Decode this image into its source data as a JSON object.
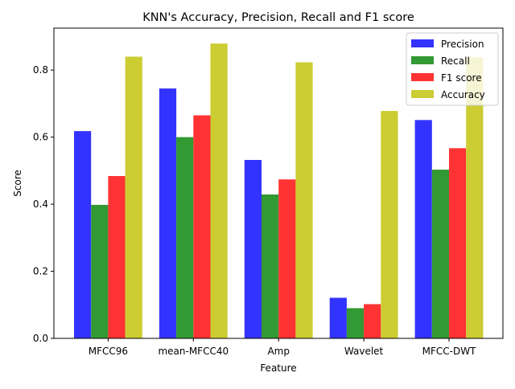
{
  "chart_data": {
    "type": "bar",
    "title": "KNN's Accuracy, Precision, Recall and F1 score",
    "xlabel": "Feature",
    "ylabel": "Score",
    "ylim": [
      0,
      0.925
    ],
    "yticks": [
      0.0,
      0.2,
      0.4,
      0.6,
      0.8
    ],
    "ytick_labels": [
      "0.0",
      "0.2",
      "0.4",
      "0.6",
      "0.8"
    ],
    "categories": [
      "MFCC96",
      "mean-MFCC40",
      "Amp",
      "Wavelet",
      "MFCC-DWT"
    ],
    "series": [
      {
        "name": "Precision",
        "color": "#3333ff",
        "values": [
          0.618,
          0.745,
          0.532,
          0.121,
          0.651
        ]
      },
      {
        "name": "Recall",
        "color": "#339933",
        "values": [
          0.398,
          0.6,
          0.429,
          0.09,
          0.503
        ]
      },
      {
        "name": "F1 score",
        "color": "#ff3333",
        "values": [
          0.484,
          0.665,
          0.474,
          0.102,
          0.567
        ]
      },
      {
        "name": "Accuracy",
        "color": "#cccc33",
        "values": [
          0.84,
          0.879,
          0.823,
          0.678,
          0.838
        ]
      }
    ],
    "legend_position": "top-right",
    "grid": false
  }
}
